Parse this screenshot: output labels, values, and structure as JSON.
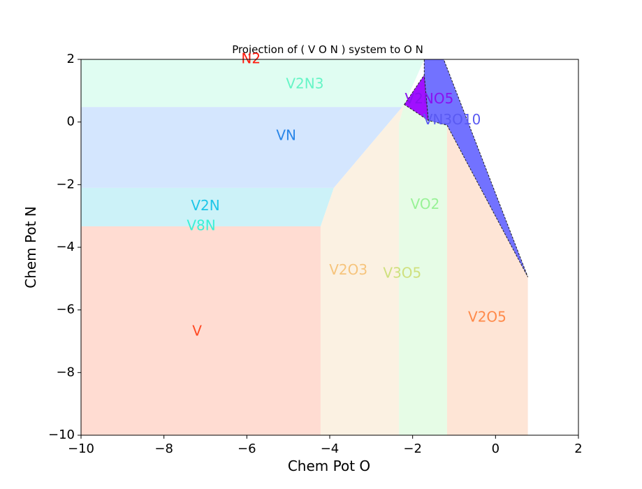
{
  "chart_data": {
    "type": "area",
    "title": "Projection of ( V O N ) system to O N",
    "xlabel": "Chem Pot O",
    "ylabel": "Chem Pot N",
    "xlim": [
      -10,
      2
    ],
    "ylim": [
      -10,
      2
    ],
    "xticks": [
      -10,
      -8,
      -6,
      -4,
      -2,
      0,
      2
    ],
    "yticks": [
      -10,
      -8,
      -6,
      -4,
      -2,
      0,
      2
    ],
    "xtick_labels": [
      "−10",
      "−8",
      "−6",
      "−4",
      "−2",
      "0",
      "2"
    ],
    "ytick_labels": [
      "−10",
      "−8",
      "−6",
      "−4",
      "−2",
      "0",
      "2"
    ],
    "grid": false,
    "regions": [
      {
        "name": "V",
        "color": "#ffdcd2",
        "label_color": "#ff4a24",
        "polygon": [
          [
            -10,
            -10
          ],
          [
            -4.22,
            -10
          ],
          [
            -4.22,
            -3.33
          ],
          [
            -10,
            -3.33
          ]
        ],
        "label_pos": [
          -7.2,
          -6.7
        ]
      },
      {
        "name": "V2N",
        "color": "#ccf2f8",
        "label_color": "#1ec6e8",
        "polygon": [
          [
            -10,
            -3.33
          ],
          [
            -4.22,
            -3.33
          ],
          [
            -3.9,
            -2.1
          ],
          [
            -10,
            -2.1
          ]
        ],
        "label_pos": [
          -7.0,
          -2.7
        ]
      },
      {
        "name": "V8N",
        "color": "#ccf2f8",
        "label_color": "#3cf0d6",
        "polygon": [],
        "label_pos": [
          -7.1,
          -3.33
        ]
      },
      {
        "name": "VN",
        "color": "#d4e6fe",
        "label_color": "#2a86e8",
        "polygon": [
          [
            -10,
            -2.1
          ],
          [
            -3.9,
            -2.1
          ],
          [
            -2.25,
            0.48
          ],
          [
            -10,
            0.48
          ]
        ],
        "label_pos": [
          -5.05,
          -0.45
        ]
      },
      {
        "name": "V2N3",
        "color": "#e0fdf2",
        "label_color": "#66f5c6",
        "polygon": [
          [
            -10,
            0.48
          ],
          [
            -2.25,
            0.48
          ],
          [
            -2.2,
            0.56
          ],
          [
            -1.72,
            2
          ],
          [
            -10,
            2
          ]
        ],
        "label_pos": [
          -4.6,
          1.2
        ]
      },
      {
        "name": "N2",
        "color": "#ffffff",
        "label_color": "#ff1a0e",
        "polygon": [],
        "label_pos": [
          -5.9,
          2.0
        ]
      },
      {
        "name": "V2O3",
        "color": "#fbf1e2",
        "label_color": "#f6c47c",
        "polygon": [
          [
            -4.22,
            -10
          ],
          [
            -2.33,
            -10
          ],
          [
            -2.33,
            -0.05
          ],
          [
            -2.2,
            0.56
          ],
          [
            -2.25,
            0.48
          ],
          [
            -3.9,
            -2.1
          ],
          [
            -4.22,
            -3.33
          ]
        ],
        "label_pos": [
          -3.55,
          -4.75
        ]
      },
      {
        "name": "V3O5",
        "color": "#fbf1e2",
        "label_color": "#cfe07e",
        "polygon": [],
        "label_pos": [
          -2.25,
          -4.85
        ]
      },
      {
        "name": "VO2",
        "color": "#e6fce6",
        "label_color": "#98f296",
        "polygon": [
          [
            -2.33,
            -10
          ],
          [
            -1.17,
            -10
          ],
          [
            -1.17,
            -0.1
          ],
          [
            -1.62,
            0.05
          ],
          [
            -2.2,
            0.56
          ],
          [
            -2.33,
            -0.05
          ]
        ],
        "label_pos": [
          -1.7,
          -2.65
        ]
      },
      {
        "name": "V2O5",
        "color": "#fee5d6",
        "label_color": "#ff8a4a",
        "polygon": [
          [
            -1.17,
            -10
          ],
          [
            0.78,
            -10
          ],
          [
            0.78,
            -4.95
          ],
          [
            -1.17,
            -0.1
          ]
        ],
        "label_pos": [
          -0.2,
          -6.25
        ]
      },
      {
        "name": "V2NO5",
        "color": "#a010ff",
        "label_color": "#8a10f0",
        "polygon": [
          [
            -2.2,
            0.56
          ],
          [
            -1.72,
            1.5
          ],
          [
            -1.62,
            0.05
          ]
        ],
        "label_pos": [
          -1.6,
          0.72
        ]
      },
      {
        "name": "VN3O10",
        "color": "#7272ff",
        "label_color": "#5a5af2",
        "polygon": [
          [
            -1.72,
            2
          ],
          [
            -1.25,
            2
          ],
          [
            0.78,
            -4.95
          ],
          [
            -1.17,
            -0.1
          ],
          [
            -1.62,
            0.05
          ],
          [
            -1.72,
            1.5
          ]
        ],
        "label_pos": [
          -1.05,
          0.05
        ]
      }
    ]
  }
}
